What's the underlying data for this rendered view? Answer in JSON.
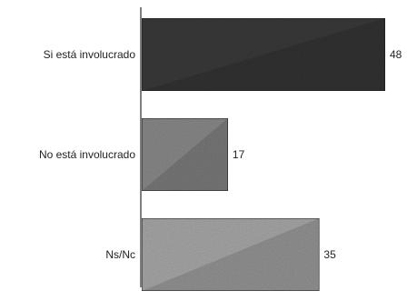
{
  "chart_data": {
    "type": "bar",
    "orientation": "horizontal",
    "categories": [
      "Si está involucrado",
      "No está involucrado",
      "Ns/Nc"
    ],
    "values": [
      48,
      17,
      35
    ],
    "value_labels": [
      "48",
      "17",
      "35"
    ],
    "colors": [
      "#3a3a3a",
      "#8a8a8a",
      "#a8a8a8"
    ],
    "title": "",
    "xlabel": "",
    "ylabel": "",
    "xlim": [
      0,
      48
    ],
    "grid": false,
    "legend": "none"
  }
}
